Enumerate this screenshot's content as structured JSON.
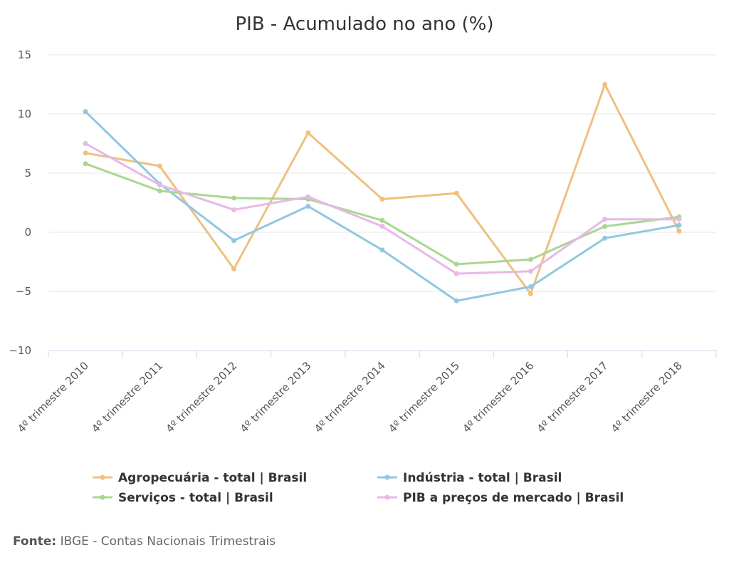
{
  "chart_data": {
    "type": "line",
    "title": "PIB - Acumulado no ano (%)",
    "categories": [
      "4º trimestre 2010",
      "4º trimestre 2011",
      "4º trimestre 2012",
      "4º trimestre 2013",
      "4º trimestre 2014",
      "4º trimestre 2015",
      "4º trimestre 2016",
      "4º trimestre 2017",
      "4º trimestre 2018"
    ],
    "ylim": [
      -10,
      15
    ],
    "yticks": [
      -10,
      -5,
      0,
      5,
      10,
      15
    ],
    "grid": true,
    "legend_position": "bottom",
    "series": [
      {
        "name": "Agropecuária - total | Brasil",
        "color": "#f0c080",
        "values": [
          6.7,
          5.6,
          -3.1,
          8.4,
          2.8,
          3.3,
          -5.2,
          12.5,
          0.1
        ]
      },
      {
        "name": "Indústria - total | Brasil",
        "color": "#90c8e0",
        "values": [
          10.2,
          4.1,
          -0.7,
          2.2,
          -1.5,
          -5.8,
          -4.6,
          -0.5,
          0.6
        ]
      },
      {
        "name": "Serviços - total | Brasil",
        "color": "#a8d890",
        "values": [
          5.8,
          3.5,
          2.9,
          2.8,
          1.0,
          -2.7,
          -2.3,
          0.5,
          1.3
        ]
      },
      {
        "name": "PIB a preços de mercado | Brasil",
        "color": "#e8b8e8",
        "values": [
          7.5,
          4.0,
          1.9,
          3.0,
          0.5,
          -3.5,
          -3.3,
          1.1,
          1.1
        ]
      }
    ]
  },
  "source": {
    "label": "Fonte:",
    "text": " IBGE - Contas Nacionais Trimestrais"
  }
}
